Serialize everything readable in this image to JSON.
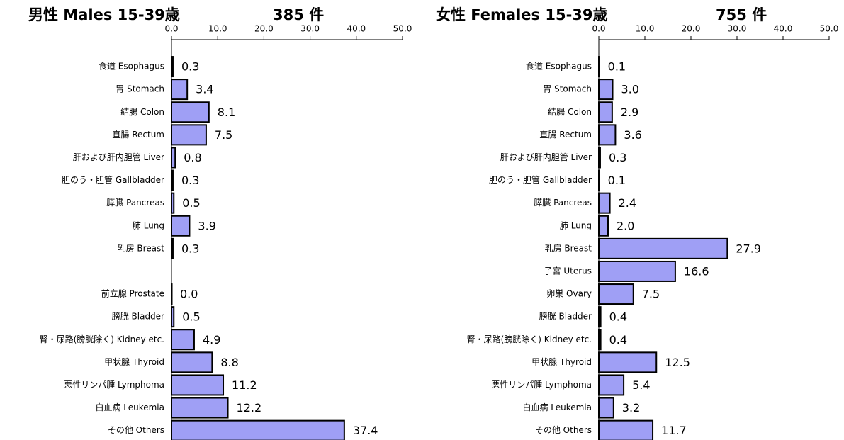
{
  "chart_data": [
    {
      "type": "bar",
      "orientation": "horizontal",
      "title": "男性 Males 15-39歳",
      "subtitle": "385 件",
      "categories": [
        "食道 Esophagus",
        "胃 Stomach",
        "結腸 Colon",
        "直腸 Rectum",
        "肝および肝内胆管 Liver",
        "胆のう・胆管 Gallbladder",
        "膵臓 Pancreas",
        "肺 Lung",
        "乳房 Breast",
        null,
        "前立腺 Prostate",
        "膀胱 Bladder",
        "腎・尿路(膀胱除く) Kidney etc.",
        "甲状腺 Thyroid",
        "悪性リンパ腫 Lymphoma",
        "白血病 Leukemia",
        "その他 Others"
      ],
      "values": [
        0.3,
        3.4,
        8.1,
        7.5,
        0.8,
        0.3,
        0.5,
        3.9,
        0.3,
        null,
        0,
        0.5,
        4.9,
        8.8,
        11.2,
        12.2,
        37.4
      ],
      "value_labels": [
        "0.3",
        "3.4",
        "8.1",
        "7.5",
        "0.8",
        "0.3",
        "0.5",
        "3.9",
        "0.3",
        null,
        "0.0",
        "0.5",
        "4.9",
        "8.8",
        "11.2",
        "12.2",
        "37.4"
      ],
      "color": "#9f9ff5",
      "xlim": [
        0,
        50
      ],
      "xticks": [
        {
          "value": 0,
          "label": "0.0"
        },
        {
          "value": 10,
          "label": "10.0"
        },
        {
          "value": 20,
          "label": "20.0"
        },
        {
          "value": 30,
          "label": "30.0"
        },
        {
          "value": 40,
          "label": "40.0"
        },
        {
          "value": 50,
          "label": "50.0"
        }
      ]
    },
    {
      "type": "bar",
      "orientation": "horizontal",
      "title": "女性 Females 15-39歳",
      "subtitle": "755 件",
      "categories": [
        "食道 Esophagus",
        "胃 Stomach",
        "結腸 Colon",
        "直腸 Rectum",
        "肝および肝内胆管 Liver",
        "胆のう・胆管 Gallbladder",
        "膵臓 Pancreas",
        "肺 Lung",
        "乳房 Breast",
        "子宮 Uterus",
        "卵巣 Ovary",
        "膀胱 Bladder",
        "腎・尿路(膀胱除く) Kidney etc.",
        "甲状腺 Thyroid",
        "悪性リンパ腫 Lymphoma",
        "白血病 Leukemia",
        "その他 Others"
      ],
      "values": [
        0.1,
        3.0,
        2.9,
        3.6,
        0.3,
        0.1,
        2.4,
        2.0,
        27.9,
        16.6,
        7.5,
        0.4,
        0.4,
        12.5,
        5.4,
        3.2,
        11.7
      ],
      "value_labels": [
        "0.1",
        "3.0",
        "2.9",
        "3.6",
        "0.3",
        "0.1",
        "2.4",
        "2.0",
        "27.9",
        "16.6",
        "7.5",
        "0.4",
        "0.4",
        "12.5",
        "5.4",
        "3.2",
        "11.7"
      ],
      "color": "#9f9ff5",
      "xlim": [
        0,
        50
      ],
      "xticks": [
        {
          "value": 0,
          "label": "0.0"
        },
        {
          "value": 10,
          "label": "10.0"
        },
        {
          "value": 20,
          "label": "20.0"
        },
        {
          "value": 30,
          "label": "30.0"
        },
        {
          "value": 40,
          "label": "40.0"
        },
        {
          "value": 50,
          "label": "50.0"
        }
      ]
    }
  ]
}
